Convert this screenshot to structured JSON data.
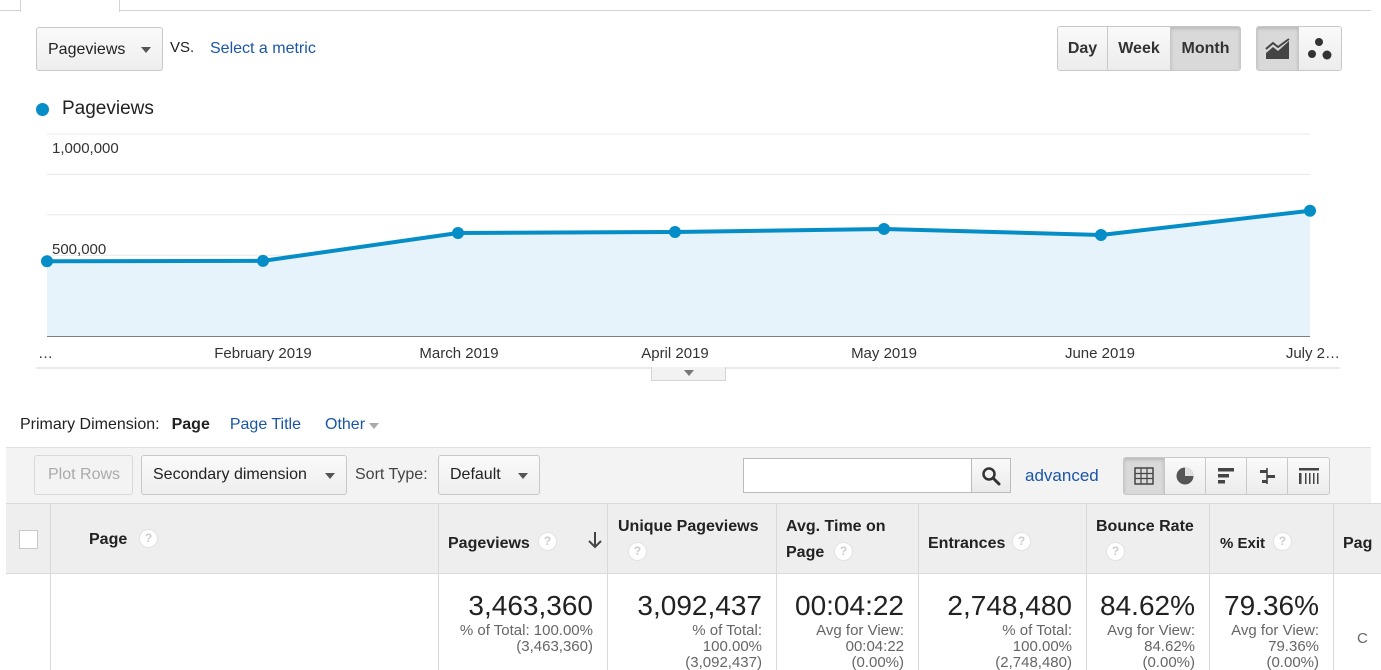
{
  "metric_row": {
    "primary_metric": "Pageviews",
    "vs_label": "VS.",
    "select_metric": "Select a metric"
  },
  "periods": [
    {
      "label": "Day",
      "active": false
    },
    {
      "label": "Week",
      "active": false
    },
    {
      "label": "Month",
      "active": true
    }
  ],
  "chart_types": [
    "line-chart-icon",
    "motion-chart-icon"
  ],
  "legend": {
    "label": "Pageviews",
    "color": "#058dc7"
  },
  "chart_data": {
    "type": "area",
    "series": [
      {
        "name": "Pageviews",
        "color": "#058dc7",
        "values": [
          370000,
          372000,
          510000,
          515000,
          530000,
          500000,
          620000
        ]
      }
    ],
    "x_tick_labels": [
      "…",
      "February 2019",
      "March 2019",
      "April 2019",
      "May 2019",
      "June 2019",
      "July 2…"
    ],
    "y_tick_labels": [
      {
        "label": "1,000,000",
        "value": 1000000
      },
      {
        "label": "500,000",
        "value": 500000
      }
    ],
    "ylim": [
      0,
      1000000
    ],
    "grid": true,
    "legend": "top-left"
  },
  "primary_dimension": {
    "label": "Primary Dimension:",
    "options": [
      "Page",
      "Page Title",
      "Other"
    ],
    "active": "Page"
  },
  "toolbar": {
    "plot_rows": "Plot Rows",
    "secondary_dimension": "Secondary dimension",
    "sort_type_label": "Sort Type:",
    "sort_type_value": "Default",
    "search_value": "",
    "advanced": "advanced"
  },
  "table": {
    "headers": {
      "page": "Page",
      "pageviews": "Pageviews",
      "unique_pageviews": "Unique Pageviews",
      "avg_time_line1": "Avg. Time on",
      "avg_time_line2": "Page",
      "entrances": "Entrances",
      "bounce_rate": "Bounce Rate",
      "exit": "% Exit",
      "page_value": "Pag"
    },
    "totals": {
      "pageviews": {
        "value": "3,463,360",
        "sub1": "% of Total: 100.00%",
        "sub2": "(3,463,360)"
      },
      "unique_pageviews": {
        "value": "3,092,437",
        "sub1": "% of Total:",
        "sub2": "100.00%",
        "sub3": "(3,092,437)"
      },
      "avg_time": {
        "value": "00:04:22",
        "sub1": "Avg for View:",
        "sub2": "00:04:22",
        "sub3": "(0.00%)"
      },
      "entrances": {
        "value": "2,748,480",
        "sub1": "% of Total:",
        "sub2": "100.00%",
        "sub3": "(2,748,480)"
      },
      "bounce_rate": {
        "value": "84.62%",
        "sub1": "Avg for View:",
        "sub2": "84.62%",
        "sub3": "(0.00%)"
      },
      "exit": {
        "value": "79.36%",
        "sub1": "Avg for View:",
        "sub2": "79.36%",
        "sub3": "(0.00%)"
      },
      "page_value": {
        "sub1": "C"
      }
    }
  }
}
